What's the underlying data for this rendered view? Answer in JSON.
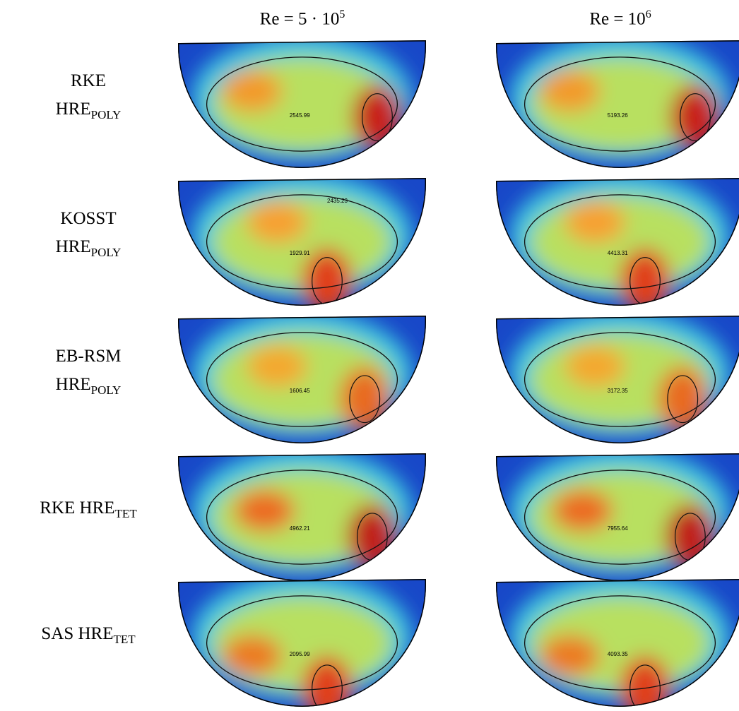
{
  "column_headers": [
    {
      "text": "Re = 5 · 10",
      "sup": "5"
    },
    {
      "text": "Re = 10",
      "sup": "6"
    }
  ],
  "rows": [
    {
      "label": "RKE",
      "model": "HRE",
      "subscript": "POLY",
      "contour_labels": [
        [
          "2545.99"
        ],
        [
          "5193.26"
        ]
      ]
    },
    {
      "label": "KOSST",
      "model": "HRE",
      "subscript": "POLY",
      "contour_labels": [
        [
          "1929.91",
          "2435.23"
        ],
        [
          "4413.31"
        ]
      ]
    },
    {
      "label": "EB-RSM",
      "model": "HRE",
      "subscript": "POLY",
      "contour_labels": [
        [
          "1606.45"
        ],
        [
          "3172.35"
        ]
      ]
    },
    {
      "label": "RKE",
      "model": "HRE",
      "subscript": "TET",
      "contour_labels": [
        [
          "4962.21"
        ],
        [
          "7955.64"
        ]
      ]
    },
    {
      "label": "SAS",
      "model": "HRE",
      "subscript": "TET",
      "contour_labels": [
        [
          "2095.99"
        ],
        [
          "4093.35"
        ]
      ]
    }
  ]
}
